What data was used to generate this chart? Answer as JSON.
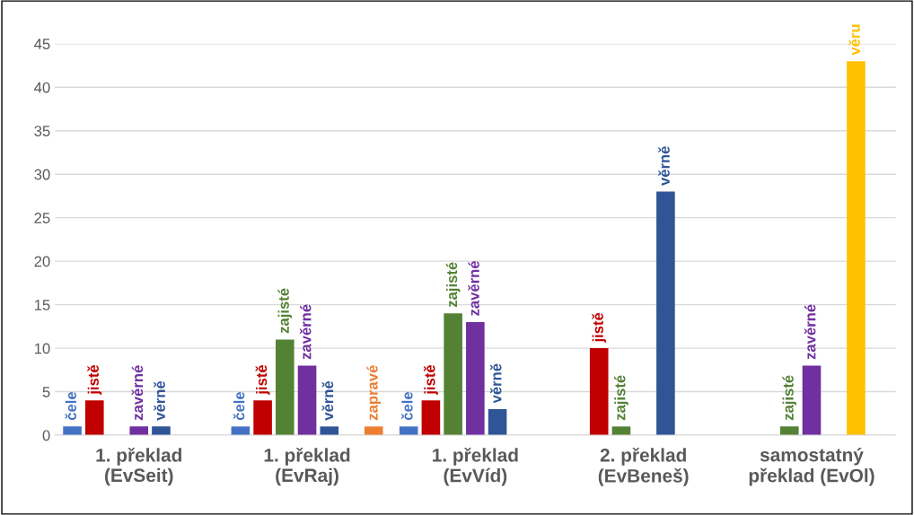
{
  "chart_data": {
    "type": "bar",
    "categories": [
      "1. překlad\n(EvSeit)",
      "1. překlad\n(EvRaj)",
      "1. překlad\n(EvVíd)",
      "2. překlad\n(EvBeneš)",
      "samostatný\npřeklad (EvOl)"
    ],
    "series": [
      {
        "name": "čele",
        "color": "#4472c4",
        "values": [
          1,
          1,
          1,
          null,
          null
        ]
      },
      {
        "name": "jistě",
        "color": "#c00000",
        "values": [
          4,
          4,
          4,
          10,
          null
        ]
      },
      {
        "name": "zajisté",
        "color": "#548235",
        "values": [
          null,
          11,
          14,
          1,
          1
        ]
      },
      {
        "name": "zavěrné",
        "color": "#7030a0",
        "values": [
          1,
          8,
          13,
          null,
          8
        ]
      },
      {
        "name": "věrně",
        "color": "#2f5597",
        "values": [
          1,
          1,
          3,
          28,
          null
        ]
      },
      {
        "name": "věru",
        "color": "#ffc000",
        "values": [
          null,
          null,
          null,
          null,
          43
        ]
      },
      {
        "name": "zapravé",
        "color": "#ed7d31",
        "values": [
          null,
          1,
          null,
          null,
          null
        ]
      }
    ],
    "ylim": [
      0,
      45
    ],
    "yticks": [
      0,
      5,
      10,
      15,
      20,
      25,
      30,
      35,
      40,
      45
    ],
    "grid": "y",
    "legend": false
  }
}
